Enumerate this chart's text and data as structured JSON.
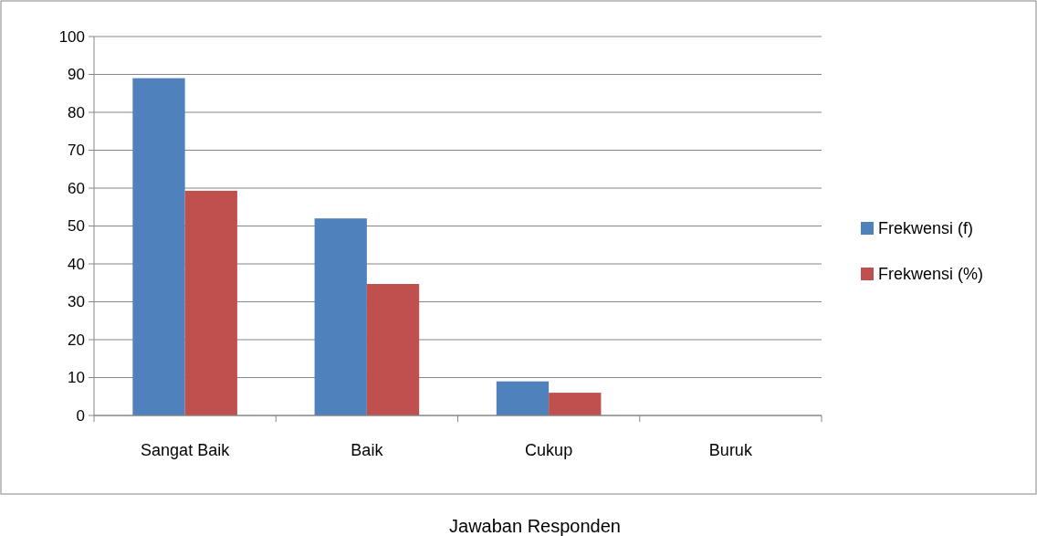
{
  "chart_data": {
    "type": "bar",
    "xlabel": "Jawaban Responden",
    "categories": [
      "Sangat Baik",
      "Baik",
      "Cukup",
      "Buruk"
    ],
    "series": [
      {
        "name": "Frekwensi (f)",
        "color": "#4f81bd",
        "values": [
          89,
          52,
          9,
          0
        ]
      },
      {
        "name": "Frekwensi (%)",
        "color": "#c0504d",
        "values": [
          59.3,
          34.7,
          6,
          0
        ]
      }
    ],
    "ylim": [
      0,
      100
    ],
    "yticks": [
      0,
      10,
      20,
      30,
      40,
      50,
      60,
      70,
      80,
      90,
      100
    ],
    "grid": "y",
    "legend": "right"
  }
}
